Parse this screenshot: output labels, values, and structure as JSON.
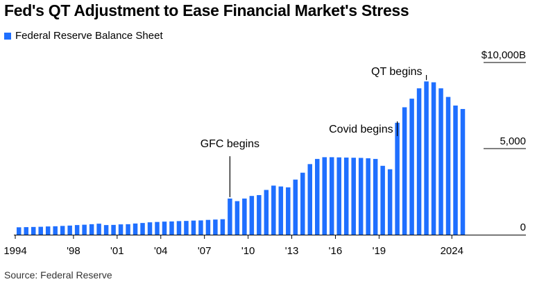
{
  "title": "Fed's QT Adjustment to Ease Financial Market's Stress",
  "source": "Source: Federal Reserve",
  "colors": {
    "bar": "#1f6fff",
    "annotation_line": "#000000",
    "axis": "#000000"
  },
  "chart_data": {
    "type": "bar",
    "title": "Fed's QT Adjustment to Ease Financial Market's Stress",
    "legend": {
      "position": "top-left",
      "entries": [
        "Federal Reserve Balance Sheet"
      ]
    },
    "series": [
      {
        "name": "Federal Reserve Balance Sheet"
      }
    ],
    "x_range": [
      1994,
      2024.75
    ],
    "x": [
      1994.0,
      1994.5,
      1995.0,
      1995.5,
      1996.0,
      1996.5,
      1997.0,
      1997.5,
      1998.0,
      1998.5,
      1999.0,
      1999.5,
      2000.0,
      2000.5,
      2001.0,
      2001.5,
      2002.0,
      2002.5,
      2003.0,
      2003.5,
      2004.0,
      2004.5,
      2005.0,
      2005.5,
      2006.0,
      2006.5,
      2007.0,
      2007.5,
      2008.0,
      2008.5,
      2009.0,
      2009.5,
      2010.0,
      2010.5,
      2011.0,
      2011.5,
      2012.0,
      2012.5,
      2013.0,
      2013.5,
      2014.0,
      2014.5,
      2015.0,
      2015.5,
      2016.0,
      2016.5,
      2017.0,
      2017.5,
      2018.0,
      2018.5,
      2019.0,
      2019.5,
      2020.0,
      2020.5,
      2021.0,
      2021.5,
      2022.0,
      2022.5,
      2023.0,
      2023.5,
      2024.0,
      2024.5
    ],
    "values": [
      430,
      440,
      450,
      460,
      480,
      490,
      510,
      530,
      560,
      580,
      610,
      640,
      560,
      570,
      600,
      610,
      650,
      680,
      720,
      740,
      760,
      770,
      790,
      800,
      820,
      830,
      860,
      880,
      900,
      2100,
      1950,
      2100,
      2250,
      2300,
      2600,
      2850,
      2800,
      2750,
      3200,
      3600,
      4100,
      4400,
      4500,
      4500,
      4490,
      4480,
      4470,
      4460,
      4440,
      4400,
      4000,
      3800,
      6500,
      7400,
      7900,
      8500,
      8900,
      8850,
      8500,
      8000,
      7500,
      7300
    ],
    "ylim": [
      0,
      10000
    ],
    "y_ticks": [
      0,
      5000,
      10000
    ],
    "y_tick_labels": [
      "0",
      "5,000",
      "$10,000B"
    ],
    "x_ticks": [
      1994,
      1998,
      2001,
      2004,
      2007,
      2010,
      2013,
      2016,
      2019,
      2024
    ],
    "x_tick_labels": [
      "1994",
      "'98",
      "'01",
      "'04",
      "'07",
      "'10",
      "'13",
      "'16",
      "'19",
      "2024"
    ],
    "annotations": [
      {
        "text": "GFC begins",
        "x": 2008.5,
        "y": 2100
      },
      {
        "text": "Covid begins",
        "x": 2020.0,
        "y": 6500
      },
      {
        "text": "QT begins",
        "x": 2022.0,
        "y": 8900
      }
    ],
    "grid": "horizontal"
  }
}
